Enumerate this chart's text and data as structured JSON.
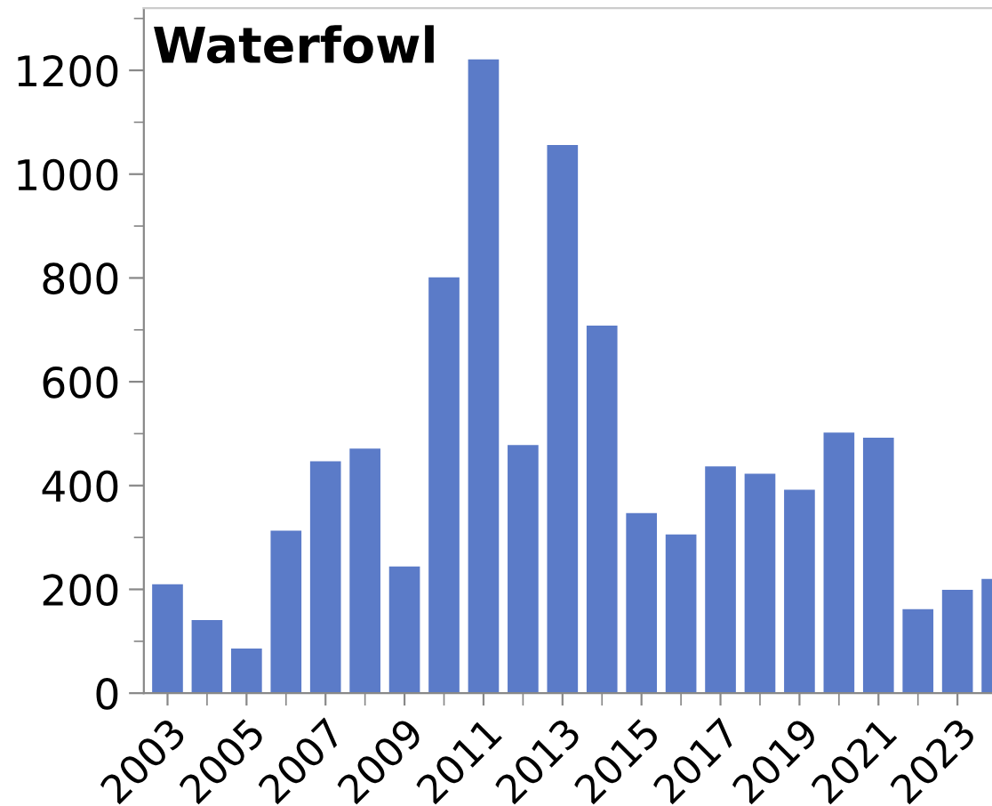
{
  "chart_data": {
    "type": "bar",
    "title": "Waterfowl",
    "categories": [
      "2003",
      null,
      "2005",
      null,
      "2007",
      null,
      "2009",
      null,
      "2011",
      null,
      "2013",
      null,
      "2015",
      null,
      "2017",
      null,
      "2019",
      null,
      "2021",
      null,
      "2023",
      null
    ],
    "values": [
      210,
      141,
      86,
      313,
      447,
      471,
      244,
      801,
      1221,
      478,
      1056,
      708,
      347,
      306,
      437,
      423,
      392,
      502,
      492,
      162,
      199,
      220
    ],
    "color": "#5b7bc8",
    "ylim": [
      0,
      1320
    ],
    "yticks": [
      0,
      200,
      400,
      600,
      800,
      1000,
      1200
    ],
    "grid": false,
    "legend": false
  }
}
